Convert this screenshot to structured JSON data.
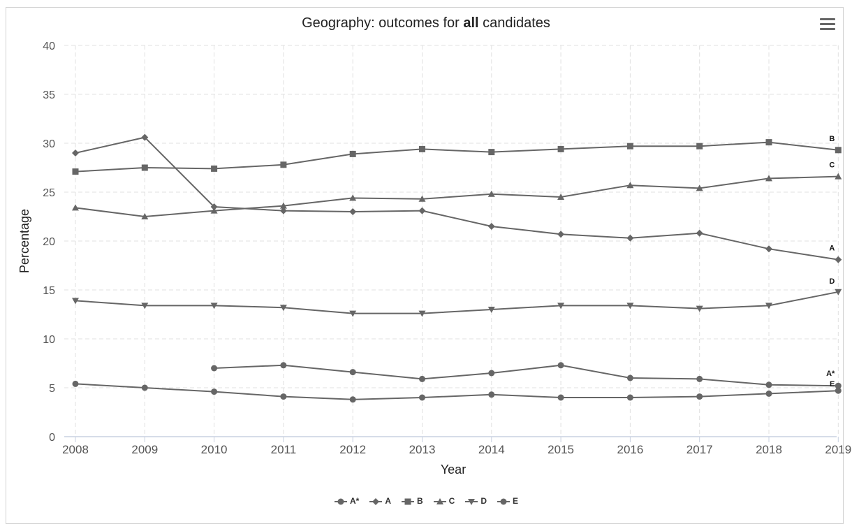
{
  "chart_data": {
    "type": "line",
    "title_prefix": "Geography: outcomes for ",
    "title_bold": "all",
    "title_suffix": " candidates",
    "xlabel": "Year",
    "ylabel": "Percentage",
    "ylim": [
      0,
      40
    ],
    "yticks": [
      0,
      5,
      10,
      15,
      20,
      25,
      30,
      35,
      40
    ],
    "grid": true,
    "legend_position": "bottom-center",
    "x": [
      "2008",
      "2009",
      "2010",
      "2011",
      "2012",
      "2013",
      "2014",
      "2015",
      "2016",
      "2017",
      "2018",
      "2019"
    ],
    "series": [
      {
        "name": "A*",
        "marker": "circle",
        "values": [
          null,
          null,
          7.0,
          7.3,
          6.6,
          5.9,
          6.5,
          7.3,
          6.0,
          5.9,
          5.3,
          5.2
        ]
      },
      {
        "name": "A",
        "marker": "diamond",
        "values": [
          29.0,
          30.6,
          23.5,
          23.1,
          23.0,
          23.1,
          21.5,
          20.7,
          20.3,
          20.8,
          19.2,
          18.1
        ]
      },
      {
        "name": "B",
        "marker": "square",
        "values": [
          27.1,
          27.5,
          27.4,
          27.8,
          28.9,
          29.4,
          29.1,
          29.4,
          29.7,
          29.7,
          30.1,
          29.3
        ]
      },
      {
        "name": "C",
        "marker": "triangle",
        "values": [
          23.4,
          22.5,
          23.1,
          23.6,
          24.4,
          24.3,
          24.8,
          24.5,
          25.7,
          25.4,
          26.4,
          26.6
        ]
      },
      {
        "name": "D",
        "marker": "triangle-down",
        "values": [
          13.9,
          13.4,
          13.4,
          13.2,
          12.6,
          12.6,
          13.0,
          13.4,
          13.4,
          13.1,
          13.4,
          14.8
        ]
      },
      {
        "name": "E",
        "marker": "circle",
        "values": [
          5.4,
          5.0,
          4.6,
          4.1,
          3.8,
          4.0,
          4.3,
          4.0,
          4.0,
          4.1,
          4.4,
          4.7
        ]
      }
    ],
    "colors": {
      "line": "#666666",
      "grid": "#e0e0e0",
      "axis": "#c8d0e0",
      "text": "#555555"
    }
  },
  "menu_icon": "hamburger-menu-icon"
}
